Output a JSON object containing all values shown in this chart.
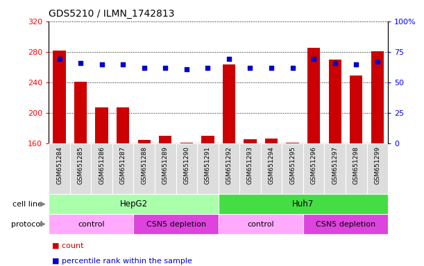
{
  "title": "GDS5210 / ILMN_1742813",
  "samples": [
    "GSM651284",
    "GSM651285",
    "GSM651286",
    "GSM651287",
    "GSM651288",
    "GSM651289",
    "GSM651290",
    "GSM651291",
    "GSM651292",
    "GSM651293",
    "GSM651294",
    "GSM651295",
    "GSM651296",
    "GSM651297",
    "GSM651298",
    "GSM651299"
  ],
  "counts": [
    282,
    241,
    207,
    207,
    165,
    170,
    161,
    170,
    264,
    166,
    167,
    161,
    285,
    270,
    249,
    281
  ],
  "percentiles": [
    69,
    66,
    65,
    65,
    62,
    62,
    61,
    62,
    69,
    62,
    62,
    62,
    69,
    66,
    65,
    67
  ],
  "ylim_left": [
    160,
    320
  ],
  "ylim_right": [
    0,
    100
  ],
  "yticks_left": [
    160,
    200,
    240,
    280,
    320
  ],
  "yticks_right": [
    0,
    25,
    50,
    75,
    100
  ],
  "bar_color": "#CC0000",
  "dot_color": "#0000CC",
  "cell_line_hepg2_color": "#AAFFAA",
  "cell_line_huh7_color": "#44DD44",
  "protocol_control_color": "#FFAAFF",
  "protocol_csn5_color": "#DD44DD",
  "tick_area_color": "#DDDDDD",
  "cell_line_label": "cell line",
  "protocol_label": "protocol",
  "cell_lines": [
    {
      "label": "HepG2",
      "start": 0,
      "end": 8
    },
    {
      "label": "Huh7",
      "start": 8,
      "end": 16
    }
  ],
  "protocols": [
    {
      "label": "control",
      "start": 0,
      "end": 4
    },
    {
      "label": "CSN5 depletion",
      "start": 4,
      "end": 8
    },
    {
      "label": "control",
      "start": 8,
      "end": 12
    },
    {
      "label": "CSN5 depletion",
      "start": 12,
      "end": 16
    }
  ],
  "legend_count_color": "#CC0000",
  "legend_dot_color": "#0000CC"
}
